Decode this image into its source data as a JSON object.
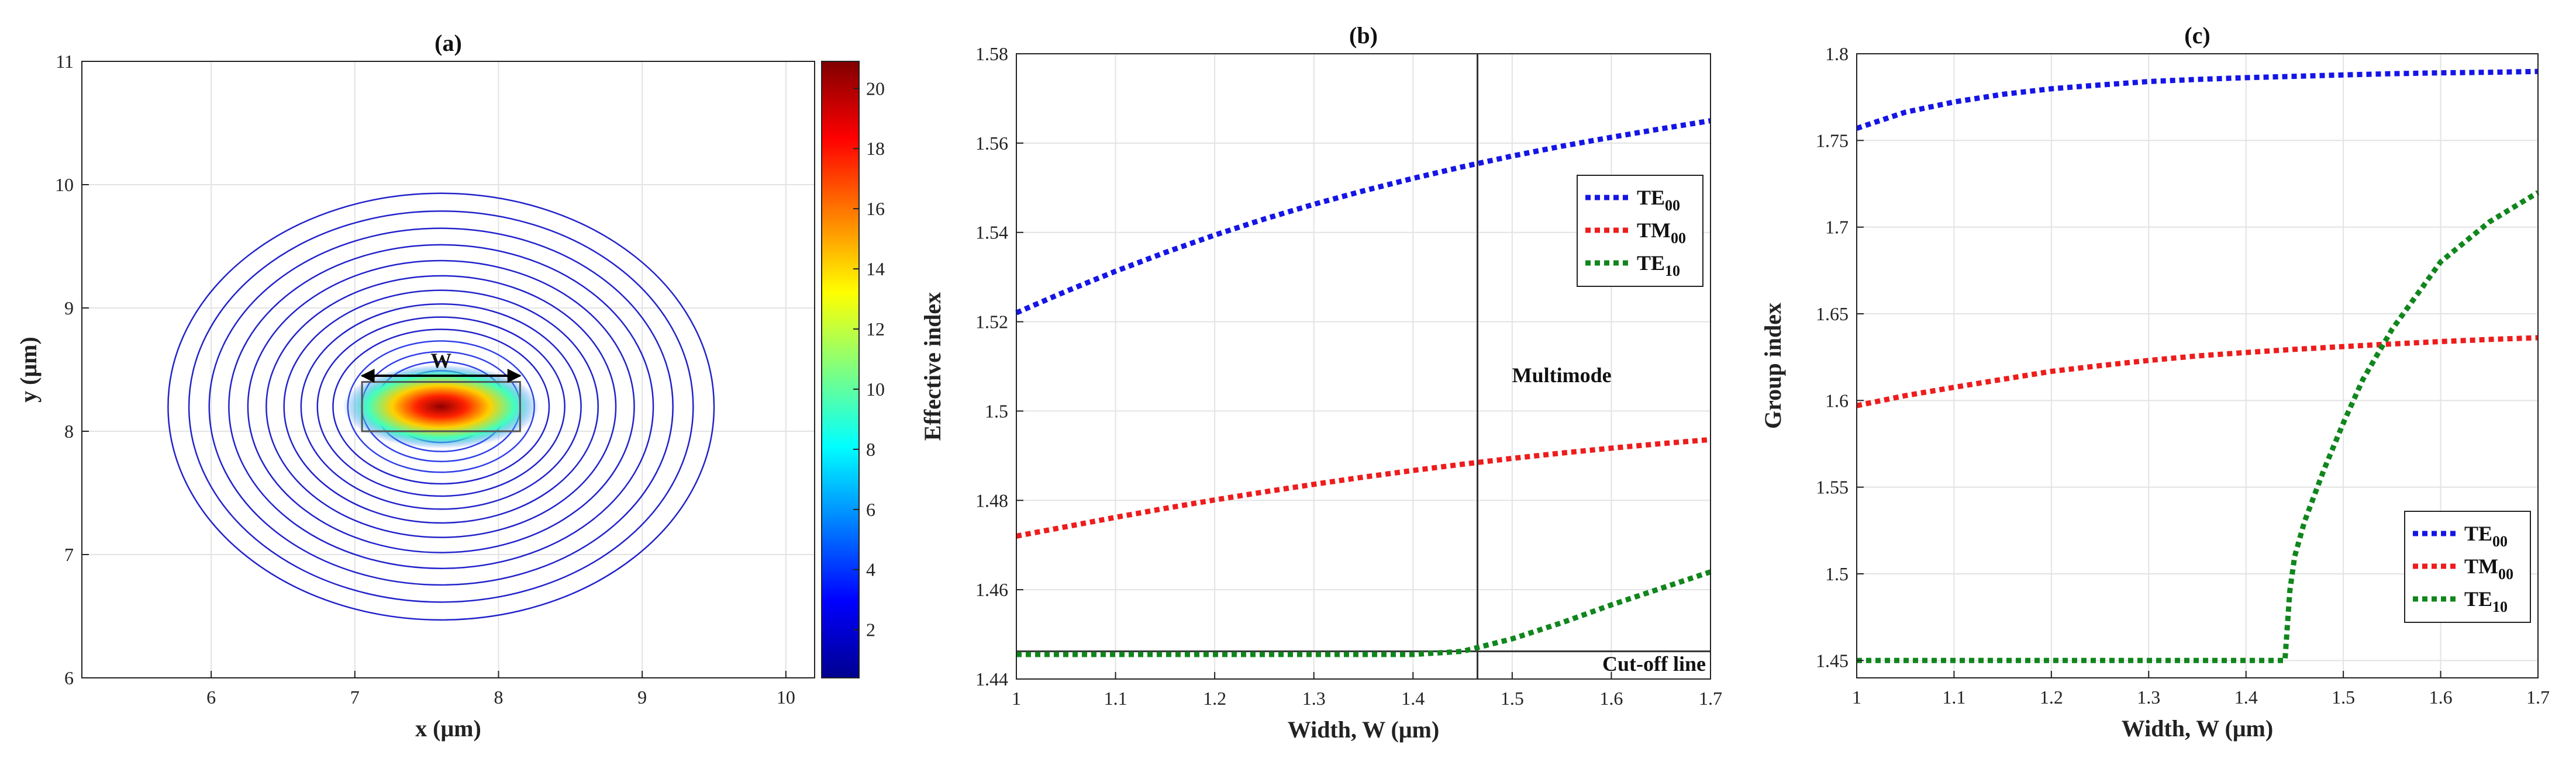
{
  "chart_data": [
    {
      "panel": "(a)",
      "type": "contour",
      "title": "(a)",
      "xlabel": "x (μm)",
      "ylabel": "y (μm)",
      "xlim": [
        5.1,
        10.2
      ],
      "ylim": [
        6,
        11
      ],
      "xticks": [
        6,
        7,
        8,
        9,
        10
      ],
      "yticks": [
        6,
        7,
        8,
        9,
        10,
        11
      ],
      "grid": true,
      "center": [
        7.6,
        8.2
      ],
      "contour_levels": 20,
      "outer_contour": {
        "x_range": [
          5.7,
          9.5
        ],
        "y_range": [
          6.47,
          9.93
        ]
      },
      "waveguide": {
        "x_range": [
          7.05,
          8.15
        ],
        "y_range": [
          8.0,
          8.4
        ]
      },
      "width_marker": {
        "label": "W",
        "x_range": [
          7.05,
          8.15
        ],
        "y": 8.45
      },
      "colorbar": {
        "range": [
          0.4,
          20.9
        ],
        "ticks": [
          2,
          4,
          6,
          8,
          10,
          12,
          14,
          16,
          18,
          20
        ],
        "colormap": "jet"
      }
    },
    {
      "panel": "(b)",
      "type": "line",
      "title": "(b)",
      "xlabel": "Width, W (μm)",
      "ylabel": "Effective index",
      "xlim": [
        1,
        1.7
      ],
      "ylim": [
        1.44,
        1.58
      ],
      "xticks": [
        1,
        1.1,
        1.2,
        1.3,
        1.4,
        1.5,
        1.6,
        1.7
      ],
      "yticks": [
        1.44,
        1.46,
        1.48,
        1.5,
        1.52,
        1.54,
        1.56,
        1.58
      ],
      "grid": true,
      "x": [
        1.0,
        1.05,
        1.1,
        1.15,
        1.2,
        1.25,
        1.3,
        1.35,
        1.4,
        1.45,
        1.5,
        1.55,
        1.6,
        1.65,
        1.7
      ],
      "series": [
        {
          "name": "TE00",
          "base": "TE",
          "sub": "00",
          "color": "#1515e6",
          "values": [
            1.522,
            1.5268,
            1.5313,
            1.5355,
            1.5394,
            1.543,
            1.5463,
            1.5493,
            1.5521,
            1.5547,
            1.5571,
            1.5593,
            1.5613,
            1.5632,
            1.565
          ]
        },
        {
          "name": "TM00",
          "base": "TM",
          "sub": "00",
          "color": "#ee1c1c",
          "values": [
            1.472,
            1.4741,
            1.4762,
            1.4782,
            1.4801,
            1.4819,
            1.4836,
            1.4852,
            1.4867,
            1.4881,
            1.4894,
            1.4906,
            1.4917,
            1.4927,
            1.4936
          ]
        },
        {
          "name": "TE10",
          "base": "TE",
          "sub": "10",
          "color": "#10861c",
          "values": [
            1.4455,
            1.4455,
            1.4455,
            1.4455,
            1.4455,
            1.4455,
            1.4455,
            1.4455,
            1.4455,
            1.4462,
            1.449,
            1.4526,
            1.4566,
            1.4603,
            1.464
          ]
        }
      ],
      "legend_position": "upper-right",
      "cutoff_line": {
        "label": "Cut-off line",
        "y": 1.4462
      },
      "multimode_line": {
        "x": 1.465
      },
      "annotations": [
        {
          "text": "Multimode",
          "x": 1.55,
          "y": 1.5065
        }
      ]
    },
    {
      "panel": "(c)",
      "type": "line",
      "title": "(c)",
      "xlabel": "Width, W (μm)",
      "ylabel": "Group index",
      "xlim": [
        1,
        1.7
      ],
      "ylim": [
        1.44,
        1.8
      ],
      "xticks": [
        1,
        1.1,
        1.2,
        1.3,
        1.4,
        1.5,
        1.6,
        1.7
      ],
      "yticks": [
        1.45,
        1.5,
        1.55,
        1.6,
        1.65,
        1.7,
        1.75,
        1.8
      ],
      "grid": true,
      "x": [
        1.0,
        1.05,
        1.1,
        1.15,
        1.2,
        1.25,
        1.3,
        1.35,
        1.4,
        1.45,
        1.5,
        1.55,
        1.6,
        1.65,
        1.7
      ],
      "series": [
        {
          "name": "TE00",
          "base": "TE",
          "sub": "00",
          "color": "#1515e6",
          "values": [
            1.757,
            1.7663,
            1.7722,
            1.7766,
            1.7798,
            1.782,
            1.784,
            1.7852,
            1.7862,
            1.787,
            1.7878,
            1.7885,
            1.789,
            1.7893,
            1.7898
          ]
        },
        {
          "name": "TM00",
          "base": "TM",
          "sub": "00",
          "color": "#ee1c1c",
          "values": [
            1.597,
            1.6028,
            1.6076,
            1.6122,
            1.6168,
            1.6201,
            1.6231,
            1.6257,
            1.6277,
            1.6295,
            1.6311,
            1.6326,
            1.634,
            1.6352,
            1.6362
          ]
        }
      ],
      "series_te10": {
        "name": "TE10",
        "base": "TE",
        "sub": "10",
        "color": "#10861c",
        "x": [
          1.0,
          1.1,
          1.2,
          1.3,
          1.4,
          1.44,
          1.445,
          1.45,
          1.46,
          1.47,
          1.48,
          1.5,
          1.52,
          1.55,
          1.6,
          1.65,
          1.7
        ],
        "values": [
          1.45,
          1.45,
          1.45,
          1.45,
          1.45,
          1.45,
          1.49,
          1.51,
          1.53,
          1.545,
          1.56,
          1.587,
          1.612,
          1.641,
          1.68,
          1.703,
          1.72
        ]
      },
      "legend_position": "lower-right"
    }
  ]
}
